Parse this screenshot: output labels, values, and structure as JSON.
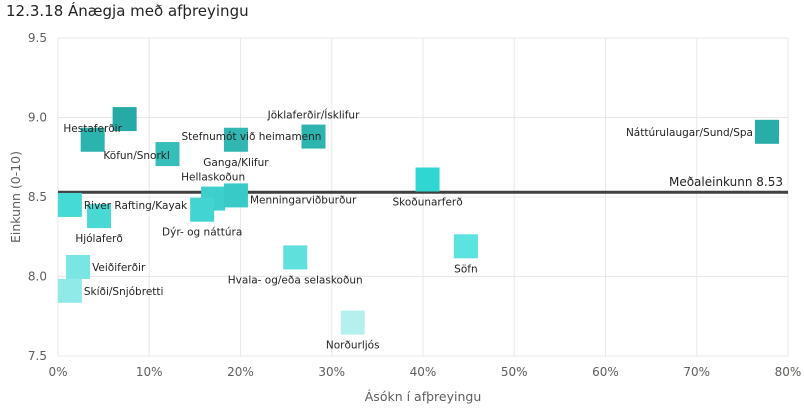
{
  "chart_data": {
    "type": "scatter",
    "title": "12.3.18 Ánægja með afþreyingu",
    "xlabel": "Ásókn í afþreyingu",
    "ylabel": "Einkunn (0-10)",
    "xlim": [
      0,
      0.8
    ],
    "ylim": [
      7.5,
      9.5
    ],
    "x_ticks": [
      0,
      0.1,
      0.2,
      0.3,
      0.4,
      0.5,
      0.6,
      0.7,
      0.8
    ],
    "x_tick_labels": [
      "0%",
      "10%",
      "20%",
      "30%",
      "40%",
      "50%",
      "60%",
      "70%",
      "80%"
    ],
    "y_ticks": [
      7.5,
      8.0,
      8.5,
      9.0,
      9.5
    ],
    "y_tick_labels": [
      "7.5",
      "8.0",
      "8.5",
      "9.0",
      "9.5"
    ],
    "grid": true,
    "average_line": {
      "value": 8.53,
      "label": "Meðaleinkunn 8.53",
      "color": "#404040"
    },
    "points": [
      {
        "name": "Hestaferðir",
        "x": 0.038,
        "y": 8.86,
        "color": "#2bb3ae"
      },
      {
        "name": "Köfun/Snorkl",
        "x": 0.073,
        "y": 8.99,
        "color": "#25aaa5"
      },
      {
        "name": "Stefnumót við heimamenn",
        "x": 0.12,
        "y": 8.77,
        "color": "#36bfba"
      },
      {
        "name": "Ganga/Klifur",
        "x": 0.195,
        "y": 8.86,
        "color": "#30b7b2"
      },
      {
        "name": "Jöklaferðir/Ísklifur",
        "x": 0.28,
        "y": 8.88,
        "color": "#2db4af"
      },
      {
        "name": "Náttúrulaugar/Sund/Spa",
        "x": 0.777,
        "y": 8.91,
        "color": "#27aea9"
      },
      {
        "name": "Hellaskoðun",
        "x": 0.17,
        "y": 8.49,
        "color": "#3ccfcc"
      },
      {
        "name": "Menningarviðburður",
        "x": 0.195,
        "y": 8.51,
        "color": "#38cac6"
      },
      {
        "name": "Dýr- og náttúra",
        "x": 0.158,
        "y": 8.42,
        "color": "#42d4d0"
      },
      {
        "name": "River Rafting/Kayak",
        "x": 0.013,
        "y": 8.45,
        "color": "#45dad6"
      },
      {
        "name": "Hjólaferð",
        "x": 0.045,
        "y": 8.38,
        "color": "#4ad8d4"
      },
      {
        "name": "Skoðunarferð",
        "x": 0.405,
        "y": 8.61,
        "color": "#2fd6d2"
      },
      {
        "name": "Söfn",
        "x": 0.447,
        "y": 8.19,
        "color": "#5ae3df"
      },
      {
        "name": "Hvala- og/eða selaskoðun",
        "x": 0.26,
        "y": 8.12,
        "color": "#5fe0dc"
      },
      {
        "name": "Veiðiferðir",
        "x": 0.022,
        "y": 8.06,
        "color": "#7ae6e3"
      },
      {
        "name": "Skíði/Snjóbretti",
        "x": 0.013,
        "y": 7.91,
        "color": "#90ebe8"
      },
      {
        "name": "Norðurljós",
        "x": 0.323,
        "y": 7.71,
        "color": "#b3f0ee"
      }
    ]
  }
}
